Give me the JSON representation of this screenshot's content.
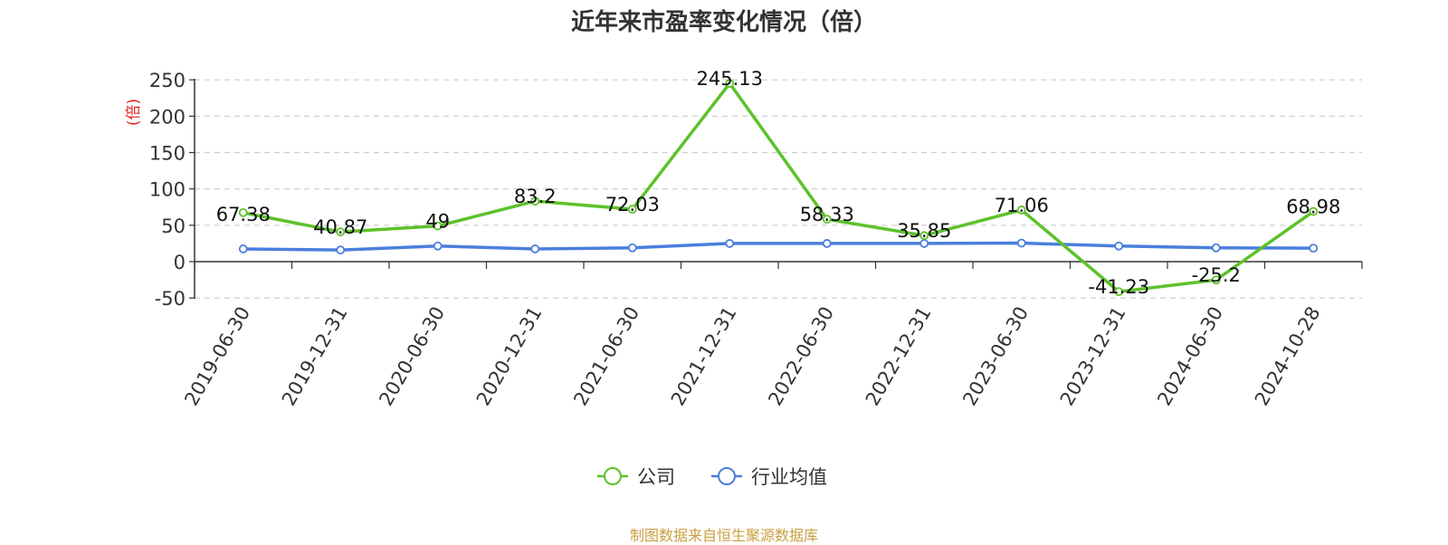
{
  "chart_data": {
    "type": "line",
    "title": "近年来市盈率变化情况（倍）",
    "ylabel": "(倍)",
    "ylim": [
      -50,
      250
    ],
    "yticks": [
      250,
      200,
      150,
      100,
      50,
      0,
      -50
    ],
    "grid": true,
    "legend_position": "bottom",
    "categories": [
      "2019-06-30",
      "2019-12-31",
      "2020-06-30",
      "2020-12-31",
      "2021-06-30",
      "2021-12-31",
      "2022-06-30",
      "2022-12-31",
      "2023-06-30",
      "2023-12-31",
      "2024-06-30",
      "2024-10-28"
    ],
    "series": [
      {
        "name": "公司",
        "color": "#5cc22a",
        "values": [
          67.38,
          40.87,
          49,
          83.2,
          72.03,
          245.13,
          58.33,
          35.85,
          71.06,
          -41.23,
          -25.2,
          68.98
        ],
        "labels": [
          "67.38",
          "40.87",
          "49",
          "83.2",
          "72.03",
          "245.13",
          "58.33",
          "35.85",
          "71.06",
          "-41.23",
          "-25.2",
          "68.98"
        ]
      },
      {
        "name": "行业均值",
        "color": "#4a7fdc",
        "values": [
          17.5,
          16,
          21.5,
          17.5,
          19,
          25,
          25,
          25,
          25.5,
          21.5,
          19,
          18.5
        ]
      }
    ]
  },
  "ylabel_color": "#e0201a",
  "source": "制图数据来自恒生聚源数据库"
}
